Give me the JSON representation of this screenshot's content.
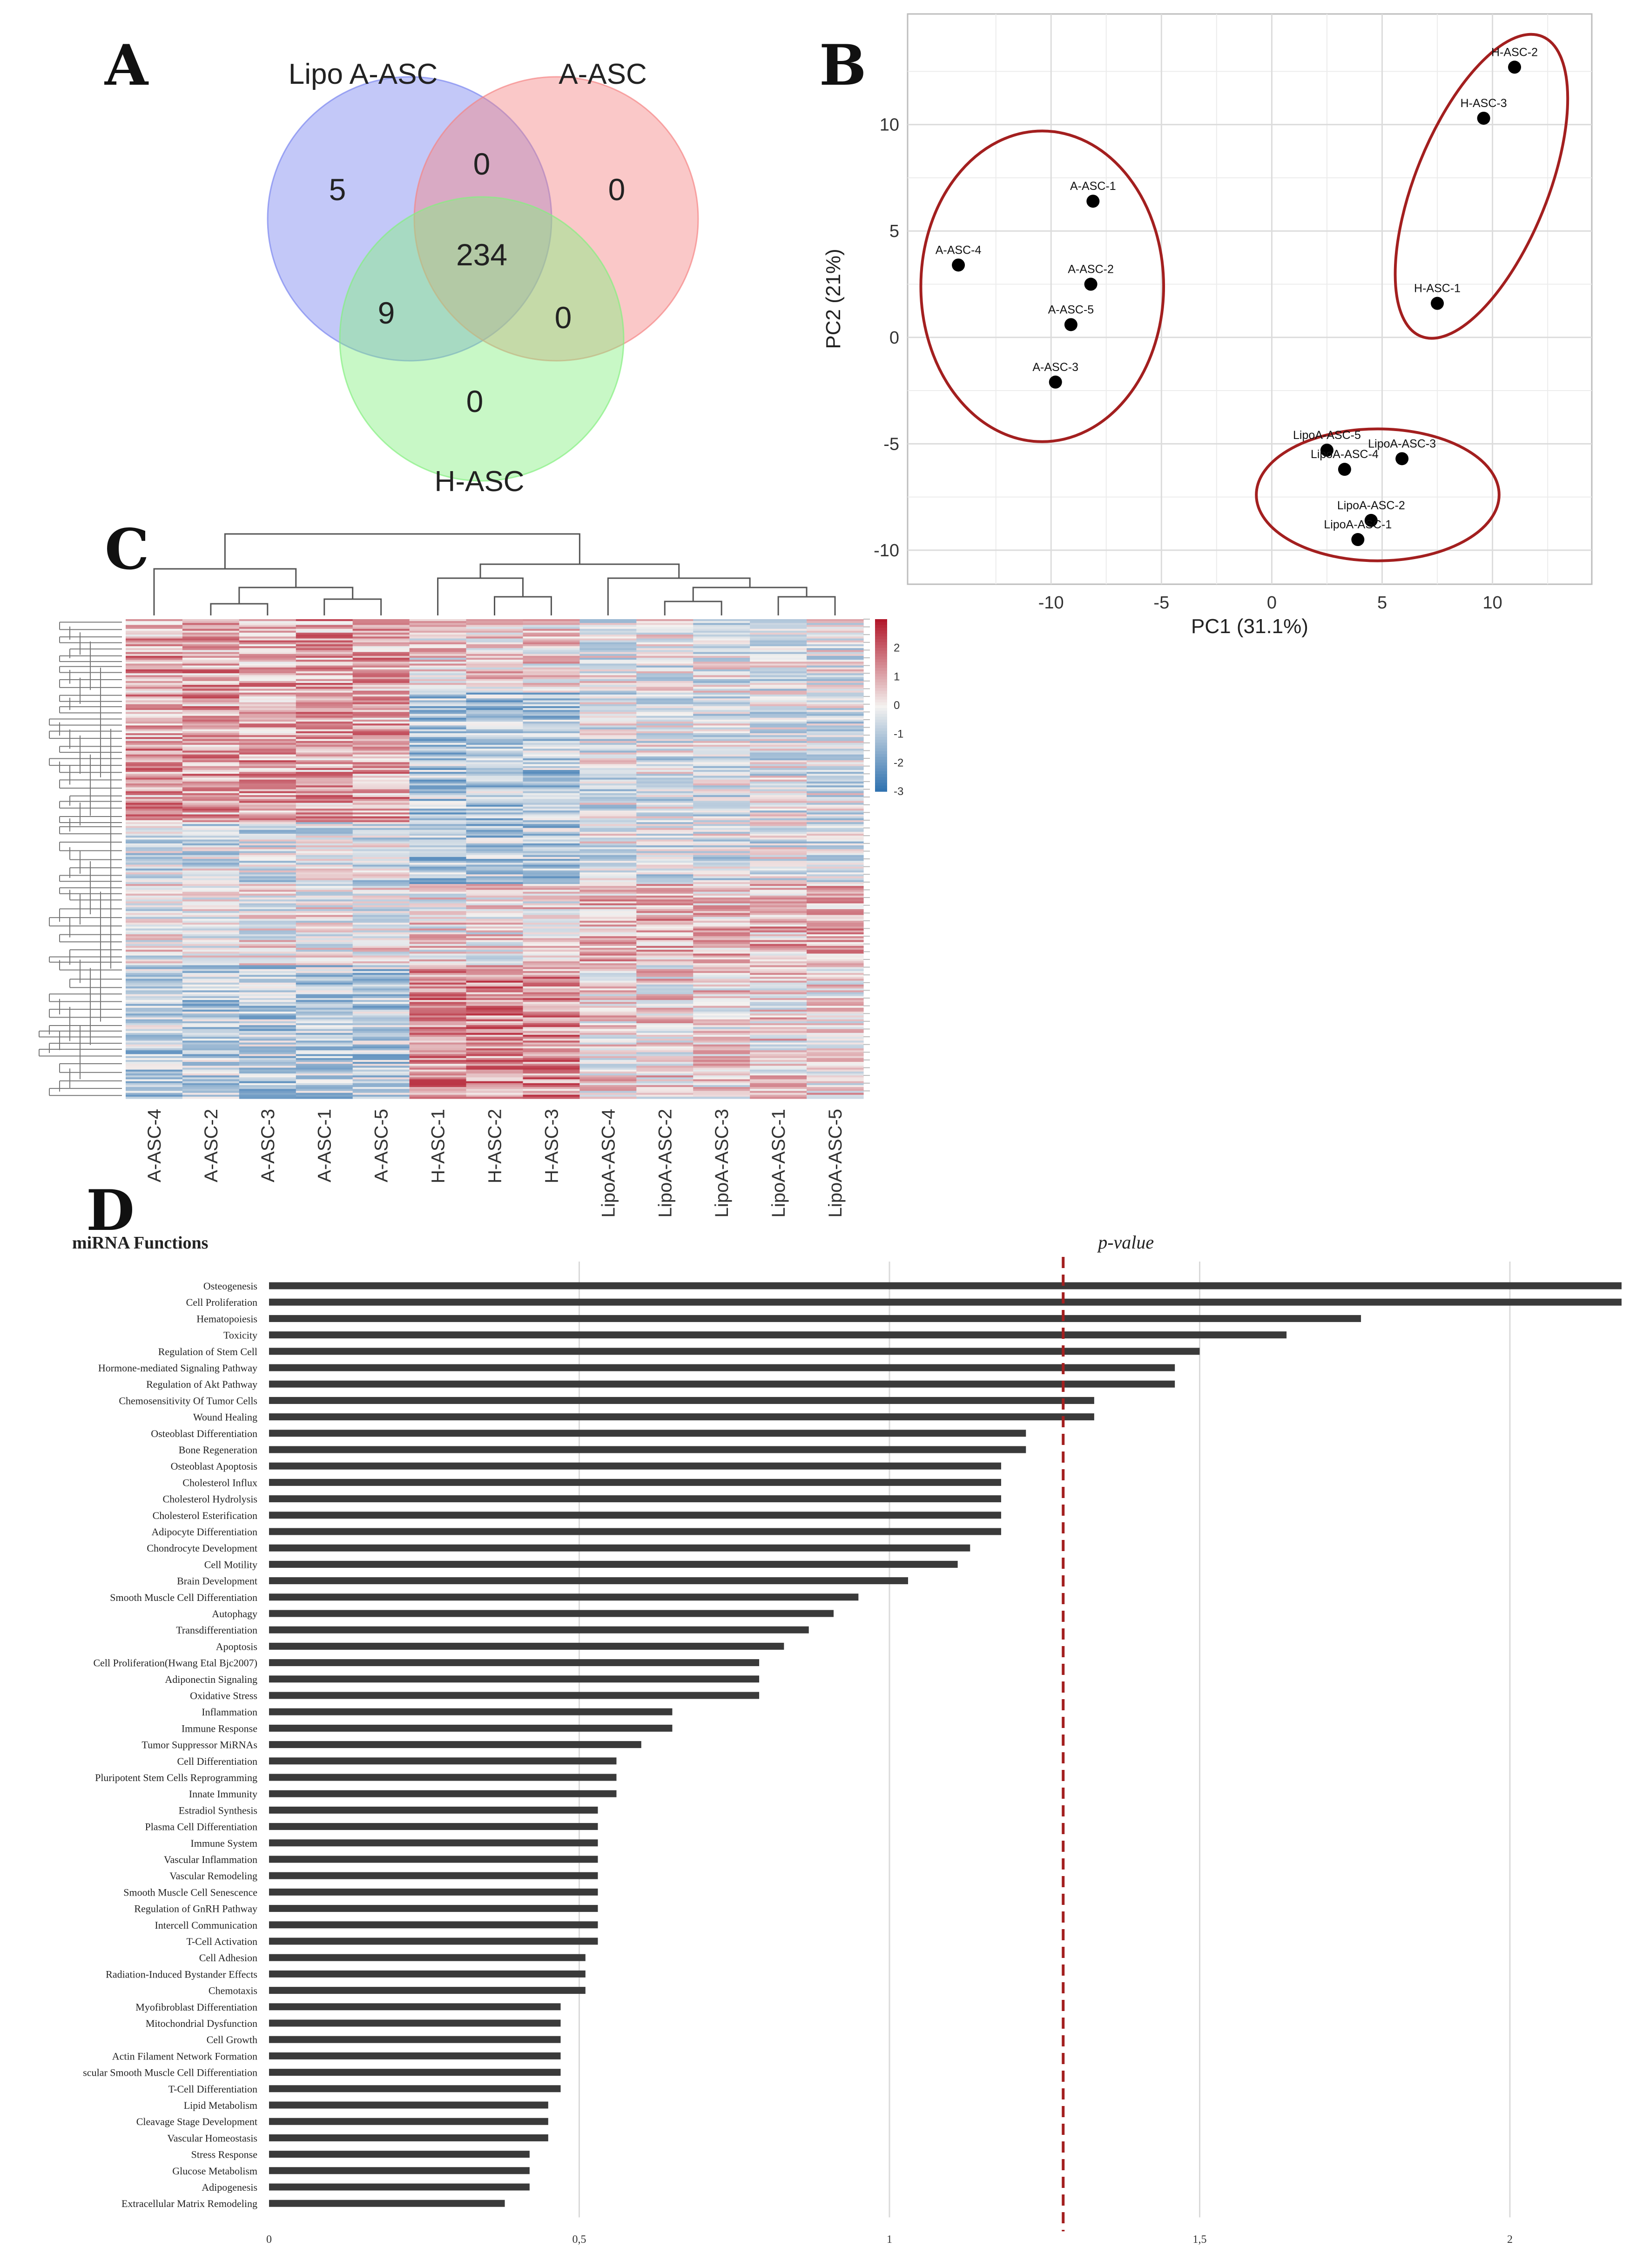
{
  "panel_labels": {
    "a": "A",
    "b": "B",
    "c": "C",
    "d": "D"
  },
  "chart_data": [
    {
      "type": "venn",
      "panel": "A",
      "sets": [
        "Lipo A-ASC",
        "A-ASC",
        "H-ASC"
      ],
      "regions": {
        "lipo_only": "5",
        "a_only": "0",
        "h_only": "0",
        "lipo_a": "0",
        "lipo_h": "9",
        "a_h": "0",
        "all": "234"
      },
      "colors": {
        "lipo": "#7b86f0",
        "a": "#f58484",
        "h": "#84f080"
      }
    },
    {
      "type": "scatter",
      "panel": "B",
      "xlabel": "PC1 (31.1%)",
      "ylabel": "PC2 (21%)",
      "xlim": [
        -16.5,
        14.5
      ],
      "ylim": [
        -11.6,
        15.2
      ],
      "xticks": [
        "-10",
        "-5",
        "0",
        "5",
        "10"
      ],
      "xtick_values": [
        -10,
        -5,
        0,
        5,
        10
      ],
      "yticks": [
        "-10",
        "-5",
        "0",
        "5",
        "10"
      ],
      "ytick_values": [
        -10,
        -5,
        0,
        5,
        10
      ],
      "points": [
        {
          "label": "A-ASC-1",
          "x": -8.1,
          "y": 6.4
        },
        {
          "label": "A-ASC-4",
          "x": -14.2,
          "y": 3.4
        },
        {
          "label": "A-ASC-2",
          "x": -8.2,
          "y": 2.5
        },
        {
          "label": "A-ASC-5",
          "x": -9.1,
          "y": 0.6
        },
        {
          "label": "A-ASC-3",
          "x": -9.8,
          "y": -2.1
        },
        {
          "label": "H-ASC-2",
          "x": 11.0,
          "y": 12.7
        },
        {
          "label": "H-ASC-3",
          "x": 9.6,
          "y": 10.3
        },
        {
          "label": "H-ASC-1",
          "x": 7.5,
          "y": 1.6
        },
        {
          "label": "LipoA-ASC-5",
          "x": 2.5,
          "y": -5.3
        },
        {
          "label": "LipoA-ASC-3",
          "x": 5.9,
          "y": -5.7
        },
        {
          "label": "LipoA-ASC-4",
          "x": 3.3,
          "y": -6.2
        },
        {
          "label": "LipoA-ASC-2",
          "x": 4.5,
          "y": -8.6
        },
        {
          "label": "LipoA-ASC-1",
          "x": 3.9,
          "y": -9.5
        }
      ],
      "groups": [
        {
          "name": "A-ASC",
          "cx": -10.4,
          "cy": 2.4,
          "rx": 5.5,
          "ry": 7.3,
          "rot": 0
        },
        {
          "name": "H-ASC",
          "cx": 9.5,
          "cy": 7.1,
          "rx": 3.0,
          "ry": 7.6,
          "rot": 22
        },
        {
          "name": "LipoA-ASC",
          "cx": 4.8,
          "cy": -7.4,
          "rx": 5.5,
          "ry": 3.1,
          "rot": 0
        }
      ],
      "ellipse_color": "#a31f1f"
    },
    {
      "type": "heatmap",
      "panel": "C",
      "columns": [
        "A-ASC-4",
        "A-ASC-2",
        "A-ASC-3",
        "A-ASC-1",
        "A-ASC-5",
        "H-ASC-1",
        "H-ASC-2",
        "H-ASC-3",
        "LipoA-ASC-4",
        "LipoA-ASC-2",
        "LipoA-ASC-3",
        "LipoA-ASC-1",
        "LipoA-ASC-5"
      ],
      "n_rows": 248,
      "color_range": [
        -3,
        3
      ],
      "colorbar_ticks": [
        "2",
        "1",
        "0",
        "-1",
        "-2",
        "-3"
      ],
      "colorbar_values": [
        2,
        1,
        0,
        -1,
        -2,
        -3
      ],
      "colors": {
        "low": "#2b6fae",
        "mid": "#f4f2f0",
        "high": "#b2182b"
      }
    },
    {
      "type": "bar",
      "panel": "D",
      "title": "miRNA Functions",
      "threshold_label": "p-value",
      "threshold": 1.28,
      "xlim": [
        0,
        2.2
      ],
      "xticks": [
        "0",
        "0,5",
        "1",
        "1,5",
        "2"
      ],
      "xtick_values": [
        0,
        0.5,
        1,
        1.5,
        2
      ],
      "bar_color": "#3a3a3a",
      "threshold_color": "#a31f1f",
      "categories": [
        "Osteogenesis",
        "Cell Proliferation",
        "Hematopoiesis",
        "Toxicity",
        "Regulation of Stem Cell",
        "Hormone-mediated Signaling Pathway",
        "Regulation of Akt Pathway",
        "Chemosensitivity Of Tumor Cells",
        "Wound Healing",
        "Osteoblast Differentiation",
        "Bone Regeneration",
        "Osteoblast Apoptosis",
        "Cholesterol Influx",
        "Cholesterol Hydrolysis",
        "Cholesterol Esterification",
        "Adipocyte Differentiation",
        "Chondrocyte Development",
        "Cell Motility",
        "Brain Development",
        "Smooth Muscle Cell Differentiation",
        "Autophagy",
        "Transdifferentiation",
        "Apoptosis",
        "Cell Proliferation(Hwang Etal Bjc2007)",
        "Adiponectin Signaling",
        "Oxidative Stress",
        "Inflammation",
        "Immune Response",
        "Tumor Suppressor MiRNAs",
        "Cell Differentiation",
        "Pluripotent Stem Cells Reprogramming",
        "Innate Immunity",
        "Estradiol Synthesis",
        "Plasma Cell Differentiation",
        "Immune System",
        "Vascular Inflammation",
        "Vascular Remodeling",
        "Smooth Muscle Cell Senescence",
        "Regulation of GnRH Pathway",
        "Intercell Communication",
        "T-Cell Activation",
        "Cell Adhesion",
        "Radiation-Induced Bystander Effects",
        "Chemotaxis",
        "Myofibroblast Differentiation",
        "Mitochondrial Dysfunction",
        "Cell Growth",
        "Actin Filament Network Formation",
        "scular Smooth Muscle Cell Differentiation",
        "T-Cell Differentiation",
        "Lipid Metabolism",
        "Cleavage Stage Development",
        "Vascular Homeostasis",
        "Stress Response",
        "Glucose Metabolism",
        "Adipogenesis",
        "Extracellular Matrix Remodeling"
      ],
      "values": [
        2.18,
        2.18,
        1.76,
        1.64,
        1.5,
        1.46,
        1.46,
        1.33,
        1.33,
        1.22,
        1.22,
        1.18,
        1.18,
        1.18,
        1.18,
        1.18,
        1.13,
        1.11,
        1.03,
        0.95,
        0.91,
        0.87,
        0.83,
        0.79,
        0.79,
        0.79,
        0.65,
        0.65,
        0.6,
        0.56,
        0.56,
        0.56,
        0.53,
        0.53,
        0.53,
        0.53,
        0.53,
        0.53,
        0.53,
        0.53,
        0.53,
        0.51,
        0.51,
        0.51,
        0.47,
        0.47,
        0.47,
        0.47,
        0.47,
        0.47,
        0.45,
        0.45,
        0.45,
        0.42,
        0.42,
        0.42,
        0.38
      ]
    }
  ]
}
